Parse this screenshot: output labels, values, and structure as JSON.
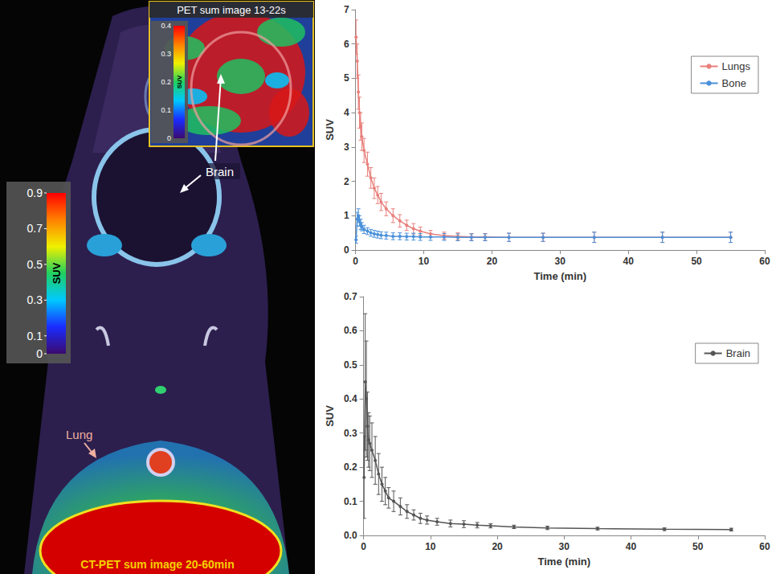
{
  "chart_data": [
    {
      "type": "line",
      "x_label": "Time (min)",
      "y_label": "SUV",
      "x": [
        0.08,
        0.25,
        0.42,
        0.58,
        0.75,
        0.92,
        1.25,
        1.75,
        2.25,
        2.75,
        3.25,
        3.75,
        4.5,
        5.5,
        6.5,
        7.5,
        8.5,
        9.5,
        11,
        13,
        15,
        17,
        19,
        22.5,
        27.5,
        35,
        45,
        55
      ],
      "series": [
        {
          "name": "Lungs",
          "color": "#e8807c",
          "marker": "circle",
          "values": [
            6.2,
            5.5,
            4.6,
            4.0,
            3.6,
            3.3,
            2.9,
            2.5,
            2.1,
            1.8,
            1.6,
            1.4,
            1.2,
            1.0,
            0.85,
            0.72,
            0.62,
            0.55,
            0.47,
            0.42,
            0.4,
            0.38,
            0.38,
            0.37,
            0.37,
            0.37,
            0.37,
            0.37
          ],
          "errors": [
            0.5,
            0.5,
            0.5,
            0.45,
            0.4,
            0.4,
            0.35,
            0.35,
            0.3,
            0.3,
            0.25,
            0.25,
            0.2,
            0.2,
            0.18,
            0.15,
            0.15,
            0.12,
            0.1,
            0.1,
            0.1,
            0.1,
            0.1,
            0.12,
            0.12,
            0.15,
            0.15,
            0.15
          ]
        },
        {
          "name": "Bone",
          "color": "#4a90d9",
          "marker": "circle",
          "values": [
            0.3,
            0.9,
            1.0,
            0.85,
            0.75,
            0.68,
            0.6,
            0.55,
            0.5,
            0.47,
            0.45,
            0.43,
            0.42,
            0.4,
            0.4,
            0.39,
            0.39,
            0.38,
            0.38,
            0.38,
            0.37,
            0.37,
            0.37,
            0.37,
            0.37,
            0.37,
            0.37,
            0.37
          ],
          "errors": [
            0.1,
            0.2,
            0.2,
            0.15,
            0.15,
            0.12,
            0.12,
            0.1,
            0.1,
            0.1,
            0.1,
            0.1,
            0.1,
            0.1,
            0.1,
            0.1,
            0.1,
            0.1,
            0.1,
            0.1,
            0.1,
            0.1,
            0.1,
            0.12,
            0.12,
            0.15,
            0.15,
            0.15
          ]
        }
      ],
      "xlim": [
        0,
        60
      ],
      "xticks": [
        0,
        10,
        20,
        30,
        40,
        50,
        60
      ],
      "ylim": [
        0,
        7
      ],
      "yticks": [
        0,
        1,
        2,
        3,
        4,
        5,
        6,
        7
      ],
      "grid": false,
      "legend": "upper right"
    },
    {
      "type": "line",
      "x_label": "Time (min)",
      "y_label": "SUV",
      "x": [
        0.08,
        0.25,
        0.42,
        0.58,
        0.75,
        0.92,
        1.25,
        1.75,
        2.25,
        2.75,
        3.25,
        3.75,
        4.5,
        5.5,
        6.5,
        7.5,
        8.5,
        9.5,
        11,
        13,
        15,
        17,
        19,
        22.5,
        27.5,
        35,
        45,
        55
      ],
      "series": [
        {
          "name": "Brain",
          "color": "#555555",
          "marker": "circle",
          "values": [
            0.17,
            0.45,
            0.4,
            0.32,
            0.28,
            0.27,
            0.25,
            0.22,
            0.18,
            0.15,
            0.13,
            0.11,
            0.1,
            0.085,
            0.07,
            0.06,
            0.05,
            0.045,
            0.04,
            0.035,
            0.033,
            0.03,
            0.028,
            0.025,
            0.022,
            0.02,
            0.018,
            0.017
          ],
          "errors": [
            0.12,
            0.2,
            0.17,
            0.1,
            0.08,
            0.08,
            0.08,
            0.07,
            0.06,
            0.05,
            0.04,
            0.03,
            0.03,
            0.025,
            0.02,
            0.015,
            0.015,
            0.012,
            0.01,
            0.01,
            0.01,
            0.008,
            0.006,
            0.005,
            0.005,
            0.004,
            0.004,
            0.004
          ]
        }
      ],
      "xlim": [
        0,
        60
      ],
      "xticks": [
        0,
        10,
        20,
        30,
        40,
        50,
        60
      ],
      "ylim": [
        0,
        0.7
      ],
      "yticks": [
        {
          "value": 0,
          "label": "0.0"
        },
        0.1,
        0.2,
        0.3,
        0.4,
        0.5,
        0.6,
        0.7
      ],
      "grid": false,
      "legend": "upper right"
    }
  ],
  "image_panel": {
    "main_image": {
      "caption": "CT-PET sum image 20-60min",
      "label": "Lung",
      "colorbar": {
        "title": "SUV",
        "range": [
          0,
          0.9
        ],
        "ticks": [
          0,
          0.1,
          0.3,
          0.5,
          0.7,
          0.9
        ]
      }
    },
    "inset": {
      "title": "PET sum image 13-22s",
      "colorbar": {
        "title": "SUV",
        "range": [
          0,
          0.4
        ],
        "ticks": [
          0,
          0.1,
          0.2,
          0.3,
          0.4
        ]
      }
    },
    "annotation": "Brain"
  }
}
